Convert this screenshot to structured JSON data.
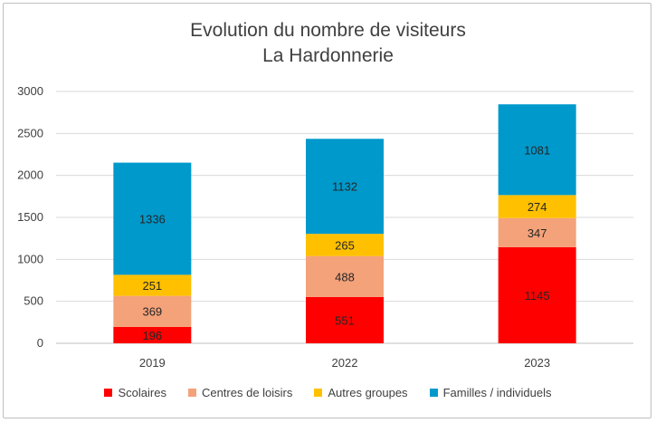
{
  "chart_data": {
    "type": "bar",
    "stacked": true,
    "title": "Evolution du nombre de visiteurs",
    "subtitle": "La Hardonnerie",
    "categories": [
      "2019",
      "2022",
      "2023"
    ],
    "series": [
      {
        "name": "Scolaires",
        "color": "#ff0000",
        "values": [
          196,
          551,
          1145
        ]
      },
      {
        "name": "Centres de loisirs",
        "color": "#f4a27a",
        "values": [
          369,
          488,
          347
        ]
      },
      {
        "name": "Autres groupes",
        "color": "#ffc000",
        "values": [
          251,
          265,
          274
        ]
      },
      {
        "name": "Familles / individuels",
        "color": "#0099cc",
        "values": [
          1336,
          1132,
          1081
        ]
      }
    ],
    "ylim": [
      0,
      3000
    ],
    "yticks": [
      "0",
      "500",
      "1000",
      "1500",
      "2000",
      "2500",
      "3000"
    ],
    "grid": true,
    "legend": "bottom"
  }
}
